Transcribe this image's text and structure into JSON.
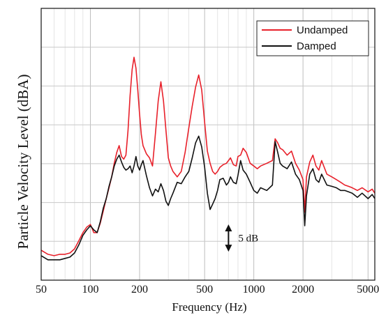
{
  "chart_data": {
    "type": "line",
    "xlabel": "Frequency (Hz)",
    "ylabel": "Particle Velocity Level (dBA)",
    "xscale": "log",
    "xlim": [
      50,
      5500
    ],
    "ylim": [
      0,
      10
    ],
    "grid": true,
    "legend_position": "top-right",
    "x_ticks": [
      {
        "value": 50,
        "label": "50"
      },
      {
        "value": 100,
        "label": "100"
      },
      {
        "value": 200,
        "label": "200"
      },
      {
        "value": 500,
        "label": "500"
      },
      {
        "value": 1000,
        "label": "1000"
      },
      {
        "value": 2000,
        "label": "2000"
      },
      {
        "value": 5000,
        "label": "5000"
      }
    ],
    "annotation": {
      "text": "5 dB",
      "x": 700,
      "y_from": 1.1,
      "y_to": 2.0
    },
    "series": [
      {
        "name": "Undamped",
        "color": "#e8202a",
        "points": [
          [
            50,
            1.1
          ],
          [
            55,
            0.95
          ],
          [
            60,
            0.9
          ],
          [
            65,
            0.95
          ],
          [
            70,
            0.95
          ],
          [
            75,
            1.0
          ],
          [
            80,
            1.15
          ],
          [
            85,
            1.45
          ],
          [
            90,
            1.75
          ],
          [
            95,
            1.95
          ],
          [
            100,
            2.05
          ],
          [
            105,
            1.75
          ],
          [
            110,
            1.75
          ],
          [
            115,
            2.1
          ],
          [
            120,
            2.55
          ],
          [
            125,
            3.0
          ],
          [
            130,
            3.4
          ],
          [
            135,
            3.8
          ],
          [
            140,
            4.3
          ],
          [
            145,
            4.7
          ],
          [
            150,
            4.95
          ],
          [
            155,
            4.55
          ],
          [
            160,
            4.45
          ],
          [
            165,
            4.6
          ],
          [
            170,
            5.5
          ],
          [
            175,
            6.8
          ],
          [
            180,
            7.75
          ],
          [
            185,
            8.2
          ],
          [
            190,
            7.8
          ],
          [
            195,
            7.0
          ],
          [
            200,
            6.1
          ],
          [
            205,
            5.35
          ],
          [
            210,
            4.95
          ],
          [
            220,
            4.65
          ],
          [
            230,
            4.5
          ],
          [
            240,
            4.2
          ],
          [
            250,
            5.4
          ],
          [
            260,
            6.6
          ],
          [
            270,
            7.3
          ],
          [
            280,
            6.6
          ],
          [
            290,
            5.5
          ],
          [
            300,
            4.5
          ],
          [
            310,
            4.2
          ],
          [
            320,
            4.0
          ],
          [
            340,
            3.8
          ],
          [
            360,
            4.0
          ],
          [
            380,
            4.7
          ],
          [
            400,
            5.6
          ],
          [
            420,
            6.4
          ],
          [
            440,
            7.1
          ],
          [
            460,
            7.55
          ],
          [
            480,
            7.0
          ],
          [
            500,
            5.8
          ],
          [
            520,
            4.75
          ],
          [
            540,
            4.3
          ],
          [
            560,
            4.0
          ],
          [
            580,
            3.9
          ],
          [
            600,
            4.0
          ],
          [
            620,
            4.15
          ],
          [
            650,
            4.25
          ],
          [
            680,
            4.3
          ],
          [
            700,
            4.4
          ],
          [
            720,
            4.5
          ],
          [
            750,
            4.25
          ],
          [
            780,
            4.2
          ],
          [
            800,
            4.55
          ],
          [
            830,
            4.6
          ],
          [
            860,
            4.85
          ],
          [
            900,
            4.7
          ],
          [
            950,
            4.3
          ],
          [
            1000,
            4.2
          ],
          [
            1050,
            4.1
          ],
          [
            1100,
            4.2
          ],
          [
            1200,
            4.3
          ],
          [
            1300,
            4.4
          ],
          [
            1350,
            5.2
          ],
          [
            1400,
            5.05
          ],
          [
            1450,
            4.85
          ],
          [
            1500,
            4.8
          ],
          [
            1600,
            4.6
          ],
          [
            1700,
            4.75
          ],
          [
            1800,
            4.3
          ],
          [
            1900,
            4.05
          ],
          [
            2000,
            3.7
          ],
          [
            2050,
            2.5
          ],
          [
            2100,
            3.8
          ],
          [
            2200,
            4.35
          ],
          [
            2300,
            4.6
          ],
          [
            2400,
            4.2
          ],
          [
            2500,
            4.05
          ],
          [
            2600,
            4.4
          ],
          [
            2800,
            3.9
          ],
          [
            3000,
            3.8
          ],
          [
            3200,
            3.7
          ],
          [
            3400,
            3.6
          ],
          [
            3600,
            3.5
          ],
          [
            3800,
            3.45
          ],
          [
            4000,
            3.4
          ],
          [
            4300,
            3.3
          ],
          [
            4600,
            3.4
          ],
          [
            5000,
            3.25
          ],
          [
            5300,
            3.35
          ],
          [
            5500,
            3.2
          ]
        ]
      },
      {
        "name": "Damped",
        "color": "#111111",
        "points": [
          [
            50,
            0.9
          ],
          [
            55,
            0.75
          ],
          [
            60,
            0.75
          ],
          [
            65,
            0.75
          ],
          [
            70,
            0.8
          ],
          [
            75,
            0.85
          ],
          [
            80,
            1.0
          ],
          [
            85,
            1.3
          ],
          [
            90,
            1.65
          ],
          [
            95,
            1.85
          ],
          [
            100,
            2.0
          ],
          [
            105,
            1.85
          ],
          [
            110,
            1.75
          ],
          [
            115,
            2.15
          ],
          [
            120,
            2.65
          ],
          [
            125,
            3.0
          ],
          [
            130,
            3.45
          ],
          [
            135,
            3.8
          ],
          [
            140,
            4.2
          ],
          [
            145,
            4.45
          ],
          [
            150,
            4.6
          ],
          [
            155,
            4.35
          ],
          [
            160,
            4.15
          ],
          [
            165,
            4.05
          ],
          [
            170,
            4.1
          ],
          [
            175,
            4.2
          ],
          [
            180,
            3.95
          ],
          [
            185,
            4.2
          ],
          [
            190,
            4.55
          ],
          [
            195,
            4.2
          ],
          [
            200,
            4.05
          ],
          [
            205,
            4.25
          ],
          [
            210,
            4.4
          ],
          [
            220,
            3.85
          ],
          [
            230,
            3.4
          ],
          [
            240,
            3.1
          ],
          [
            250,
            3.35
          ],
          [
            260,
            3.25
          ],
          [
            270,
            3.55
          ],
          [
            280,
            3.3
          ],
          [
            290,
            2.9
          ],
          [
            300,
            2.75
          ],
          [
            310,
            3.0
          ],
          [
            320,
            3.2
          ],
          [
            340,
            3.6
          ],
          [
            360,
            3.55
          ],
          [
            380,
            3.8
          ],
          [
            400,
            4.0
          ],
          [
            420,
            4.5
          ],
          [
            440,
            5.05
          ],
          [
            460,
            5.3
          ],
          [
            480,
            4.9
          ],
          [
            500,
            4.15
          ],
          [
            520,
            3.2
          ],
          [
            540,
            2.6
          ],
          [
            560,
            2.8
          ],
          [
            580,
            3.0
          ],
          [
            600,
            3.3
          ],
          [
            620,
            3.7
          ],
          [
            650,
            3.75
          ],
          [
            680,
            3.5
          ],
          [
            700,
            3.6
          ],
          [
            720,
            3.8
          ],
          [
            750,
            3.6
          ],
          [
            780,
            3.55
          ],
          [
            800,
            3.85
          ],
          [
            830,
            4.4
          ],
          [
            860,
            4.05
          ],
          [
            900,
            3.9
          ],
          [
            950,
            3.6
          ],
          [
            1000,
            3.3
          ],
          [
            1050,
            3.2
          ],
          [
            1100,
            3.4
          ],
          [
            1200,
            3.3
          ],
          [
            1300,
            3.5
          ],
          [
            1350,
            5.1
          ],
          [
            1400,
            4.7
          ],
          [
            1450,
            4.3
          ],
          [
            1500,
            4.2
          ],
          [
            1600,
            4.1
          ],
          [
            1700,
            4.35
          ],
          [
            1800,
            3.9
          ],
          [
            1900,
            3.7
          ],
          [
            2000,
            3.3
          ],
          [
            2050,
            2.0
          ],
          [
            2100,
            3.1
          ],
          [
            2200,
            3.9
          ],
          [
            2300,
            4.1
          ],
          [
            2400,
            3.7
          ],
          [
            2500,
            3.6
          ],
          [
            2600,
            3.9
          ],
          [
            2800,
            3.5
          ],
          [
            3000,
            3.45
          ],
          [
            3200,
            3.4
          ],
          [
            3400,
            3.3
          ],
          [
            3600,
            3.3
          ],
          [
            3800,
            3.25
          ],
          [
            4000,
            3.2
          ],
          [
            4300,
            3.05
          ],
          [
            4600,
            3.2
          ],
          [
            5000,
            3.0
          ],
          [
            5300,
            3.15
          ],
          [
            5500,
            3.0
          ]
        ]
      }
    ]
  }
}
